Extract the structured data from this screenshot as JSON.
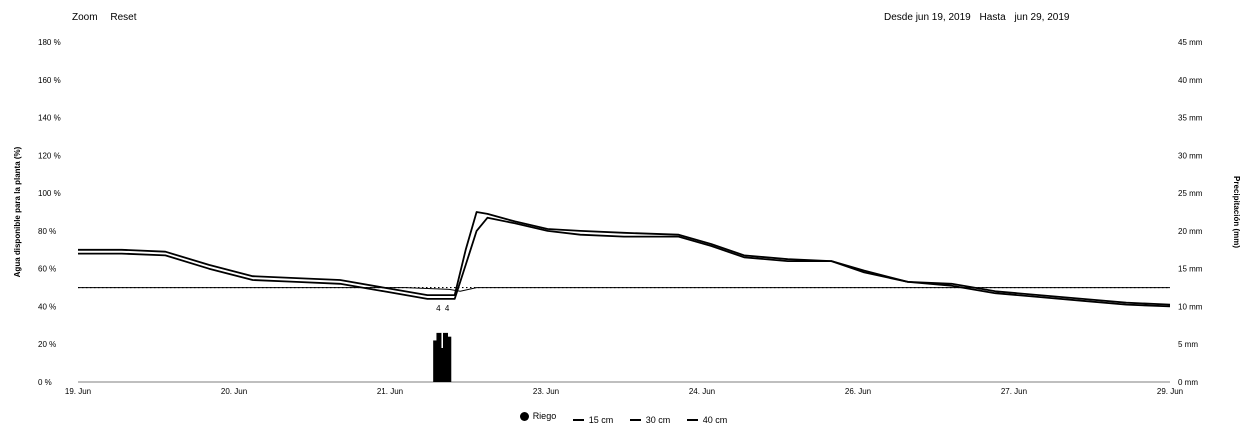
{
  "toolbar": {
    "zoom_label": "Zoom",
    "reset_label": "Reset",
    "from_label": "Desde",
    "from_value": "jun 19, 2019",
    "to_label": "Hasta",
    "to_value": "jun 29, 2019"
  },
  "chart_data": {
    "type": "line",
    "y_left": {
      "label": "Agua disponible para la planta (%)",
      "ticks": [
        0,
        20,
        40,
        60,
        80,
        100,
        120,
        140,
        160,
        180
      ],
      "tick_labels": [
        "0 %",
        "20 %",
        "40 %",
        "60 %",
        "80 %",
        "100 %",
        "120 %",
        "140 %",
        "160 %",
        "180 %"
      ],
      "range": [
        0,
        180
      ]
    },
    "y_right": {
      "label": "Precipitación (mm)",
      "ticks": [
        0,
        5,
        10,
        15,
        20,
        25,
        30,
        35,
        40,
        45
      ],
      "tick_labels": [
        "0 mm",
        "5 mm",
        "10 mm",
        "15 mm",
        "20 mm",
        "25 mm",
        "30 mm",
        "35 mm",
        "40 mm",
        "45 mm"
      ],
      "range": [
        0,
        45
      ]
    },
    "x": {
      "range": [
        19,
        29
      ],
      "ticks": [
        19,
        20.429,
        21.857,
        23.286,
        24.714,
        26.143,
        27.571,
        29
      ],
      "tick_labels": [
        "19. Jun",
        "20. Jun",
        "21. Jun",
        "23. Jun",
        "24. Jun",
        "26. Jun",
        "27. Jun",
        "29. Jun"
      ]
    },
    "bars": {
      "name": "Riego",
      "color": "#000000",
      "x": [
        22.28,
        22.31,
        22.34,
        22.37,
        22.4
      ],
      "values": [
        5.5,
        6.5,
        4.5,
        6.5,
        6.0
      ],
      "labels": [
        {
          "x": 22.3,
          "text": "4"
        },
        {
          "x": 22.38,
          "text": "4"
        }
      ]
    },
    "threshold": {
      "value": 50,
      "color": "#000000"
    },
    "series": [
      {
        "name": "15 cm",
        "color": "#000000",
        "points": [
          [
            19,
            70
          ],
          [
            19.4,
            70
          ],
          [
            19.8,
            69
          ],
          [
            20.2,
            62
          ],
          [
            20.6,
            56
          ],
          [
            21.0,
            55
          ],
          [
            21.4,
            54
          ],
          [
            21.8,
            50
          ],
          [
            22.2,
            46
          ],
          [
            22.45,
            46
          ],
          [
            22.55,
            70
          ],
          [
            22.65,
            90
          ],
          [
            22.75,
            89
          ],
          [
            23.0,
            85
          ],
          [
            23.3,
            81
          ],
          [
            23.6,
            80
          ],
          [
            24.0,
            79
          ],
          [
            24.5,
            78
          ],
          [
            24.8,
            73
          ],
          [
            25.1,
            67
          ],
          [
            25.5,
            65
          ],
          [
            25.9,
            64
          ],
          [
            26.2,
            59
          ],
          [
            26.6,
            53
          ],
          [
            27.0,
            52
          ],
          [
            27.4,
            48
          ],
          [
            27.8,
            46
          ],
          [
            28.2,
            44
          ],
          [
            28.6,
            42
          ],
          [
            29,
            41
          ]
        ]
      },
      {
        "name": "30 cm",
        "color": "#000000",
        "points": [
          [
            19,
            68
          ],
          [
            19.4,
            68
          ],
          [
            19.8,
            67
          ],
          [
            20.2,
            60
          ],
          [
            20.6,
            54
          ],
          [
            21.0,
            53
          ],
          [
            21.4,
            52
          ],
          [
            21.8,
            48
          ],
          [
            22.2,
            44
          ],
          [
            22.45,
            44
          ],
          [
            22.55,
            62
          ],
          [
            22.65,
            80
          ],
          [
            22.75,
            87
          ],
          [
            23.0,
            84
          ],
          [
            23.3,
            80
          ],
          [
            23.6,
            78
          ],
          [
            24.0,
            77
          ],
          [
            24.5,
            77
          ],
          [
            24.8,
            72
          ],
          [
            25.1,
            66
          ],
          [
            25.5,
            64
          ],
          [
            25.9,
            64
          ],
          [
            26.2,
            58
          ],
          [
            26.6,
            53
          ],
          [
            27.0,
            51
          ],
          [
            27.4,
            47
          ],
          [
            27.8,
            45
          ],
          [
            28.2,
            43
          ],
          [
            28.6,
            41
          ],
          [
            29,
            40
          ]
        ]
      },
      {
        "name": "40 cm",
        "color": "#000000",
        "points": [
          [
            19,
            50
          ],
          [
            19.5,
            50
          ],
          [
            20,
            50
          ],
          [
            21,
            50
          ],
          [
            22,
            50
          ],
          [
            22.4,
            49
          ],
          [
            22.5,
            48
          ],
          [
            22.65,
            50
          ],
          [
            22.8,
            50
          ],
          [
            23.5,
            50
          ],
          [
            24.5,
            50
          ],
          [
            25.5,
            50
          ],
          [
            26.5,
            50
          ],
          [
            27.5,
            50
          ],
          [
            28.5,
            50
          ],
          [
            29,
            50
          ]
        ]
      }
    ]
  },
  "legend": {
    "items": [
      {
        "label": "Riego"
      },
      {
        "label": "15 cm"
      },
      {
        "label": "30 cm"
      },
      {
        "label": "40 cm"
      }
    ]
  }
}
